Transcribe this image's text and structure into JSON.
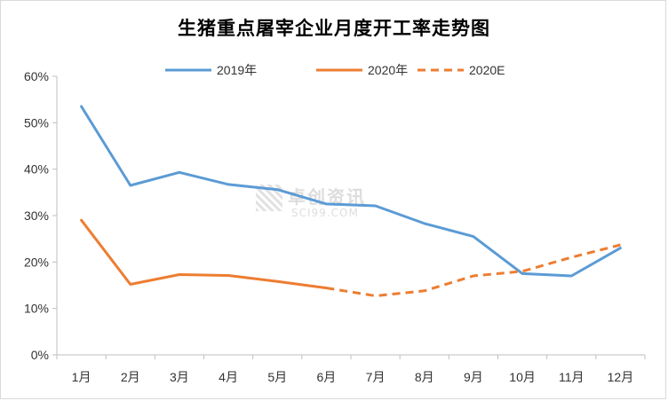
{
  "chart_data": {
    "type": "line",
    "title": "生猪重点屠宰企业月度开工率走势图",
    "categories": [
      "1月",
      "2月",
      "3月",
      "4月",
      "5月",
      "6月",
      "7月",
      "8月",
      "9月",
      "10月",
      "11月",
      "12月"
    ],
    "ylim": [
      0,
      60
    ],
    "yticks": [
      "0%",
      "10%",
      "20%",
      "30%",
      "40%",
      "50%",
      "60%"
    ],
    "grid": false,
    "legend_position": "top-center",
    "series": [
      {
        "name": "2019年",
        "color": "#5b9bd5",
        "dashed": false,
        "values": [
          53.5,
          36.5,
          39.3,
          36.7,
          35.6,
          32.5,
          32.1,
          28.3,
          25.5,
          17.5,
          17.0,
          23.0
        ]
      },
      {
        "name": "2020年",
        "color": "#ed7d31",
        "dashed": false,
        "values": [
          29.0,
          15.2,
          17.3,
          17.1,
          15.8,
          14.4,
          null,
          null,
          null,
          null,
          null,
          null
        ]
      },
      {
        "name": "2020E",
        "color": "#ed7d31",
        "dashed": true,
        "values": [
          null,
          null,
          null,
          null,
          null,
          14.4,
          12.7,
          13.8,
          17.0,
          18.0,
          21.0,
          23.7
        ]
      }
    ]
  },
  "watermark": {
    "line1": "卓创资讯",
    "line2": "SCI99.COM"
  }
}
